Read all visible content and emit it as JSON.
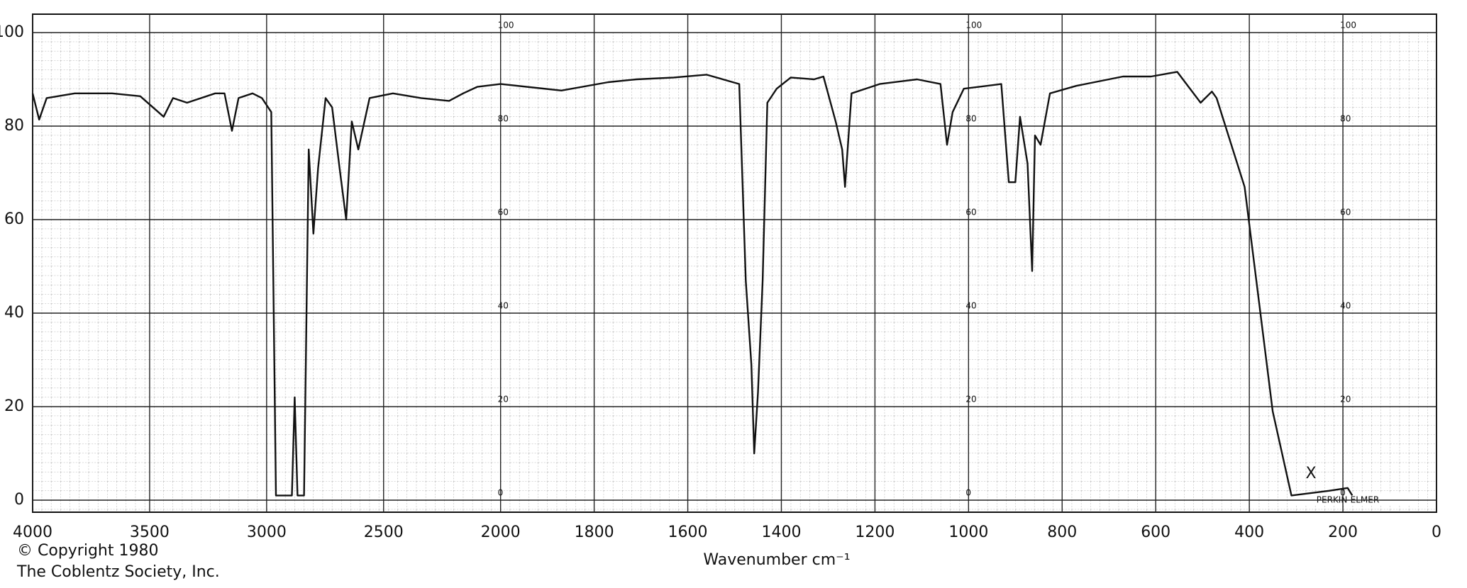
{
  "chart_data": {
    "type": "line",
    "x_label": "Wavenumber cm⁻¹",
    "copyright": "© Copyright  1980",
    "publisher": "The Coblentz Society, Inc.",
    "instrument": "PERKIN-ELMER",
    "annotation": "X",
    "xlim": [
      4000,
      0
    ],
    "xbreak": 2000,
    "xticks": [
      4000,
      3500,
      3000,
      2500,
      2000,
      1800,
      1600,
      1400,
      1200,
      1000,
      800,
      600,
      400,
      200,
      0
    ],
    "ylim": [
      0,
      100
    ],
    "yticks": [
      0,
      20,
      40,
      60,
      80,
      100
    ],
    "grid": true,
    "series": [
      {
        "color": "#111111",
        "x": [
          4000,
          3972,
          3940,
          3820,
          3660,
          3540,
          3440,
          3400,
          3340,
          3220,
          3180,
          3148,
          3120,
          3060,
          3020,
          2980,
          2960,
          2940,
          2892,
          2880,
          2868,
          2840,
          2820,
          2800,
          2780,
          2748,
          2720,
          2688,
          2660,
          2636,
          2608,
          2560,
          2460,
          2340,
          2220,
          2160,
          2100,
          2000,
          1870,
          1770,
          1710,
          1630,
          1560,
          1490,
          1476,
          1464,
          1458,
          1450,
          1440,
          1430,
          1410,
          1380,
          1330,
          1310,
          1284,
          1270,
          1264,
          1250,
          1190,
          1110,
          1060,
          1046,
          1034,
          1010,
          930,
          914,
          900,
          890,
          874,
          864,
          858,
          846,
          826,
          770,
          670,
          610,
          554,
          504,
          480,
          470,
          410,
          380,
          350,
          310,
          230,
          190,
          180
        ],
        "values": [
          87,
          81.4,
          86,
          87,
          87,
          86.4,
          82,
          86,
          85,
          87,
          87,
          79,
          86,
          87,
          86,
          83,
          1,
          1,
          1,
          22,
          1,
          1,
          75,
          57,
          71,
          86,
          84,
          71,
          60,
          81,
          75,
          86,
          87,
          86,
          85.4,
          87,
          88.4,
          89,
          87.6,
          89.4,
          90,
          90.4,
          91,
          89,
          47,
          29,
          10,
          23,
          47,
          85,
          88,
          90.4,
          90,
          90.6,
          81,
          75,
          67,
          87,
          89,
          90,
          89,
          76,
          83,
          88,
          89,
          68,
          68,
          82,
          72,
          49,
          78,
          76,
          87,
          88.6,
          90.6,
          90.6,
          91.6,
          85,
          87.4,
          86,
          67,
          43,
          19,
          1,
          2,
          2.6,
          1
        ]
      }
    ]
  }
}
